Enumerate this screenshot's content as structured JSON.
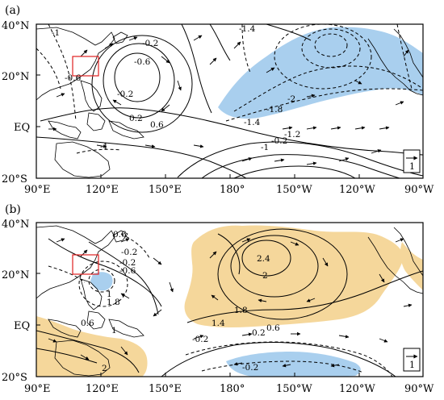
{
  "panels": [
    {
      "label": "(a)",
      "y_ticks": [
        "40°N",
        "20°N",
        "EQ",
        "20°S"
      ],
      "x_ticks": [
        "90°E",
        "120°E",
        "150°E",
        "180°",
        "150°W",
        "120°W",
        "90°W"
      ],
      "contour_labels": [
        "-1",
        "-1.4",
        "-0.2",
        "-0.6",
        "-0.6",
        "-2",
        "-1.8",
        "0.2",
        "0.6",
        "-1.4",
        "-1",
        "-1.2",
        "-0.2",
        "-1",
        "-0.2"
      ],
      "reference_vector_label": "1",
      "shading_color": "#a9cfee"
    },
    {
      "label": "(b)",
      "y_ticks": [
        "40°N",
        "20°N",
        "EQ",
        "20°S"
      ],
      "x_ticks": [
        "90°E",
        "120°E",
        "150°E",
        "180°",
        "150°W",
        "120°W",
        "90°W"
      ],
      "contour_labels": [
        "0.6",
        "-0.2",
        "-0.2",
        "-0.6",
        "1",
        "1.8",
        "2.4",
        "2",
        "1.8",
        "1.4",
        "0.6",
        "1",
        "0.2",
        "0.6",
        "-0.2",
        "-0.2",
        "2"
      ],
      "reference_vector_label": "1",
      "shading_colors": [
        "#f5d79b",
        "#a9cfee"
      ]
    }
  ]
}
